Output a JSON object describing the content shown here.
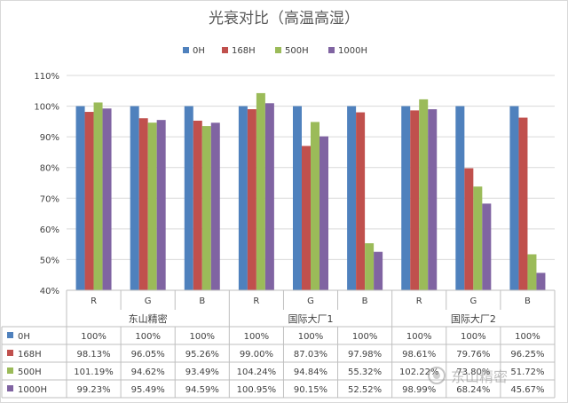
{
  "chart_data": {
    "type": "bar",
    "title": "光衰对比（高温高湿）",
    "groups": [
      {
        "name": "东山精密",
        "categories": [
          "R",
          "G",
          "B"
        ]
      },
      {
        "name": "国际大厂1",
        "categories": [
          "R",
          "G",
          "B"
        ]
      },
      {
        "name": "国际大厂2",
        "categories": [
          "R",
          "G",
          "B"
        ]
      }
    ],
    "categories": [
      "R",
      "G",
      "B",
      "R",
      "G",
      "B",
      "R",
      "G",
      "B"
    ],
    "series": [
      {
        "name": "0H",
        "color": "#4f81bd",
        "values": [
          100,
          100,
          100,
          100,
          100,
          100,
          100,
          100,
          100
        ],
        "labels": [
          "100%",
          "100%",
          "100%",
          "100%",
          "100%",
          "100%",
          "100%",
          "100%",
          "100%"
        ]
      },
      {
        "name": "168H",
        "color": "#c0504d",
        "values": [
          98.13,
          96.05,
          95.26,
          99.0,
          87.03,
          97.98,
          98.61,
          79.76,
          96.25
        ],
        "labels": [
          "98.13%",
          "96.05%",
          "95.26%",
          "99.00%",
          "87.03%",
          "97.98%",
          "98.61%",
          "79.76%",
          "96.25%"
        ]
      },
      {
        "name": "500H",
        "color": "#9bbb59",
        "values": [
          101.19,
          94.62,
          93.49,
          104.24,
          94.84,
          55.32,
          102.22,
          73.8,
          51.72
        ],
        "labels": [
          "101.19%",
          "94.62%",
          "93.49%",
          "104.24%",
          "94.84%",
          "55.32%",
          "102.22%",
          "73.80%",
          "51.72%"
        ]
      },
      {
        "name": "1000H",
        "color": "#8064a2",
        "values": [
          99.23,
          95.49,
          94.59,
          100.95,
          90.15,
          52.52,
          98.99,
          68.24,
          45.67
        ],
        "labels": [
          "99.23%",
          "95.49%",
          "94.59%",
          "100.95%",
          "90.15%",
          "52.52%",
          "98.99%",
          "68.24%",
          "45.67%"
        ]
      }
    ],
    "ylim": [
      40,
      110
    ],
    "yticks": [
      40,
      50,
      60,
      70,
      80,
      90,
      100,
      110
    ],
    "ytick_labels": [
      "40%",
      "50%",
      "60%",
      "70%",
      "80%",
      "90%",
      "100%",
      "110%"
    ],
    "grid": true,
    "legend_position": "top",
    "data_table": true
  },
  "watermark": {
    "text": "东山精密"
  }
}
